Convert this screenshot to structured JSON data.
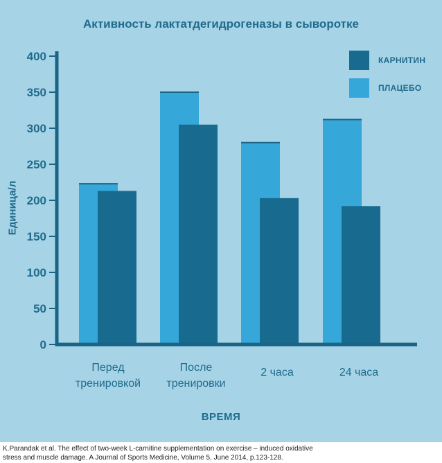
{
  "chart_data": {
    "type": "bar",
    "title": "Активность лактатдегидрогеназы в сыворотке",
    "xlabel": "ВРЕМЯ",
    "ylabel": "Единица/л",
    "categories": [
      [
        "Перед",
        "тренировкой"
      ],
      [
        "После",
        "тренировки"
      ],
      [
        "2 часа"
      ],
      [
        "24 часа"
      ]
    ],
    "series": [
      {
        "name": "ПЛАЦЕБО",
        "color": "#35a7d8",
        "values": [
          223,
          350,
          280,
          312
        ]
      },
      {
        "name": "КАРНИТИН",
        "color": "#186a8f",
        "values": [
          213,
          305,
          203,
          192
        ]
      }
    ],
    "ylim": [
      0,
      400
    ],
    "yticks": [
      0,
      50,
      100,
      150,
      200,
      250,
      300,
      350,
      400
    ],
    "grid": false,
    "legend_position": "top-right",
    "colors": {
      "background": "#a6d3e6",
      "text": "#1f6b8c",
      "axis": "#1a6485"
    }
  },
  "caption": {
    "line1": "K.Parandak et al. The effect of two-week L-carnitine supplementation on exercise – induced oxidative",
    "line2": "stress and muscle damage. A Journal of Sports Medicine, Volume 5, June 2014, p.123-128."
  }
}
